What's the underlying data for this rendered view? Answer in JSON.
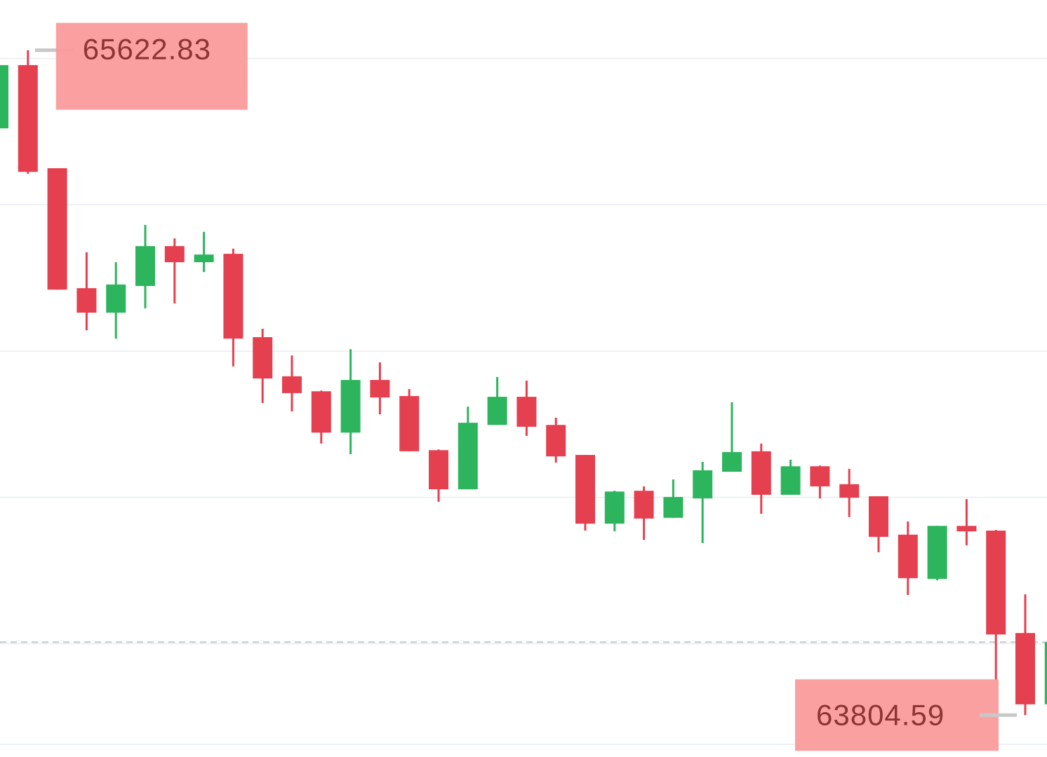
{
  "chart_data": {
    "type": "candlestick",
    "open": [
      65409,
      65582,
      65300,
      64972,
      64905,
      64978,
      65087,
      65043,
      65066,
      64838,
      64731,
      64690,
      64577,
      64721,
      64677,
      64529,
      64422,
      64598,
      64675,
      64598,
      64516,
      64328,
      64418,
      64344,
      64397,
      64470,
      64526,
      64407,
      64485,
      64436,
      64403,
      64298,
      64177,
      64322,
      64309,
      64029,
      63834
    ],
    "high": [
      65582,
      65622.83,
      65300,
      65070,
      65043,
      65145,
      65108,
      65126,
      65080,
      64861,
      64788,
      64692,
      64805,
      64769,
      64696,
      64531,
      64648,
      64729,
      64719,
      64618,
      64516,
      64418,
      64430,
      64449,
      64497,
      64660,
      64547,
      64503,
      64487,
      64478,
      64403,
      64334,
      64322,
      64395,
      64311,
      64135,
      64004
    ],
    "low": [
      65409,
      65285,
      64968,
      64857,
      64834,
      64917,
      64930,
      65016,
      64758,
      64658,
      64635,
      64547,
      64518,
      64627,
      64526,
      64388,
      64422,
      64598,
      64568,
      64495,
      64309,
      64307,
      64284,
      64344,
      64275,
      64470,
      64355,
      64407,
      64397,
      64346,
      64250,
      64133,
      64173,
      64269,
      63901,
      63804.59,
      63834
    ],
    "close": [
      65582,
      65290,
      64968,
      64905,
      64982,
      65087,
      65043,
      65064,
      64834,
      64725,
      64685,
      64577,
      64721,
      64673,
      64526,
      64422,
      64604,
      64675,
      64593,
      64512,
      64328,
      64416,
      64342,
      64401,
      64474,
      64524,
      64407,
      64485,
      64430,
      64399,
      64292,
      64179,
      64322,
      64307,
      64025,
      63834,
      64004
    ],
    "up_color": "#2db55d",
    "down_color": "#e5404f",
    "ylim": [
      63690,
      65760
    ],
    "yticks": [
      65600,
      65200,
      64800,
      64400,
      64000
    ],
    "grid": true
  }
}
